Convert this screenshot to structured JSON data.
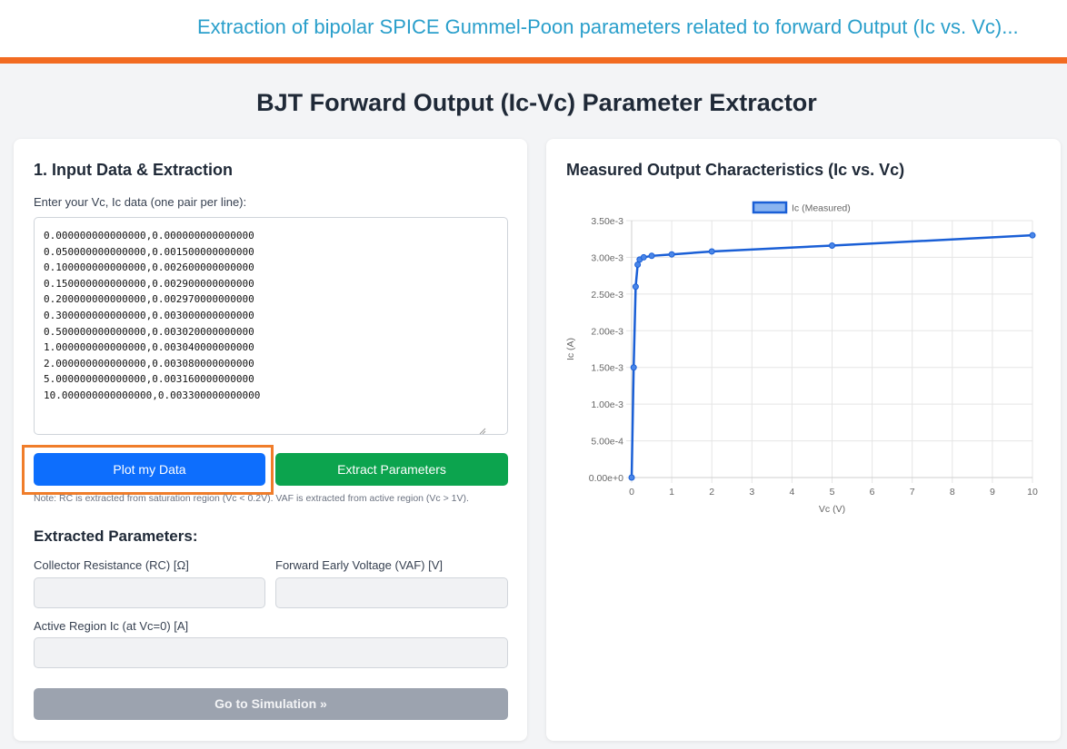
{
  "header": {
    "title": "Extraction of bipolar SPICE Gummel-Poon parameters related to forward Output (Ic vs. Vc)..."
  },
  "page_title": "BJT Forward Output (Ic-Vc) Parameter Extractor",
  "input_panel": {
    "title": "1. Input Data & Extraction",
    "textarea_label": "Enter your Vc, Ic data (one pair per line):",
    "textarea_value": "0.000000000000000,0.000000000000000\n0.050000000000000,0.001500000000000\n0.100000000000000,0.002600000000000\n0.150000000000000,0.002900000000000\n0.200000000000000,0.002970000000000\n0.300000000000000,0.003000000000000\n0.500000000000000,0.003020000000000\n1.000000000000000,0.003040000000000\n2.000000000000000,0.003080000000000\n5.000000000000000,0.003160000000000\n10.000000000000000,0.003300000000000",
    "plot_button": "Plot my Data",
    "extract_button": "Extract Parameters",
    "note": "Note: RC is extracted from saturation region (Vc < 0.2V). VAF is extracted from active region (Vc > 1V).",
    "params_title": "Extracted Parameters:",
    "rc_label": "Collector Resistance (RC) [Ω]",
    "vaf_label": "Forward Early Voltage (VAF) [V]",
    "ic_label": "Active Region Ic (at Vc=0) [A]",
    "rc_value": "",
    "vaf_value": "",
    "ic_value": "",
    "sim_button": "Go to Simulation »"
  },
  "chart_panel": {
    "title": "Measured Output Characteristics (Ic vs. Vc)"
  },
  "colors": {
    "accent_orange": "#f26b21",
    "header_blue": "#2a9fcb",
    "primary": "#0d6efd",
    "success": "#0ca44e",
    "disabled": "#9ca3af",
    "series": "#1a5fd6"
  },
  "chart_data": {
    "type": "line",
    "title": "",
    "xlabel": "Vc (V)",
    "ylabel": "Ic (A)",
    "legend": {
      "position": "top",
      "entries": [
        "Ic (Measured)"
      ]
    },
    "xlim": [
      0,
      10
    ],
    "ylim": [
      0,
      0.0035
    ],
    "x_ticks": [
      "0",
      "1",
      "2",
      "3",
      "4",
      "5",
      "6",
      "7",
      "8",
      "9",
      "10"
    ],
    "y_ticks": [
      "0.00e+0",
      "5.00e-4",
      "1.00e-3",
      "1.50e-3",
      "2.00e-3",
      "2.50e-3",
      "3.00e-3",
      "3.50e-3"
    ],
    "grid": true,
    "series": [
      {
        "name": "Ic (Measured)",
        "x": [
          0,
          0.05,
          0.1,
          0.15,
          0.2,
          0.3,
          0.5,
          1,
          2,
          5,
          10
        ],
        "y": [
          0,
          0.0015,
          0.0026,
          0.0029,
          0.00297,
          0.003,
          0.00302,
          0.00304,
          0.00308,
          0.00316,
          0.0033
        ]
      }
    ]
  }
}
